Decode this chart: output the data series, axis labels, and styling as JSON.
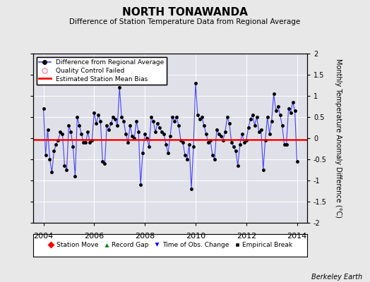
{
  "title": "NORTH TONAWANDA",
  "subtitle": "Difference of Station Temperature Data from Regional Average",
  "ylabel": "Monthly Temperature Anomaly Difference (°C)",
  "xlabel_years": [
    2004,
    2006,
    2008,
    2010,
    2012,
    2014
  ],
  "ylim": [
    -2,
    2
  ],
  "xlim": [
    2003.6,
    2014.4
  ],
  "bias_value": -0.03,
  "background_color": "#e8e8e8",
  "plot_bg_color": "#e0e0e8",
  "line_color": "#4444ff",
  "dot_color": "#000000",
  "bias_color": "#ff0000",
  "watermark": "Berkeley Earth",
  "data_x": [
    2004.0,
    2004.083,
    2004.167,
    2004.25,
    2004.333,
    2004.417,
    2004.5,
    2004.583,
    2004.667,
    2004.75,
    2004.833,
    2004.917,
    2005.0,
    2005.083,
    2005.167,
    2005.25,
    2005.333,
    2005.417,
    2005.5,
    2005.583,
    2005.667,
    2005.75,
    2005.833,
    2005.917,
    2006.0,
    2006.083,
    2006.167,
    2006.25,
    2006.333,
    2006.417,
    2006.5,
    2006.583,
    2006.667,
    2006.75,
    2006.833,
    2006.917,
    2007.0,
    2007.083,
    2007.167,
    2007.25,
    2007.333,
    2007.417,
    2007.5,
    2007.583,
    2007.667,
    2007.75,
    2007.833,
    2007.917,
    2008.0,
    2008.083,
    2008.167,
    2008.25,
    2008.333,
    2008.417,
    2008.5,
    2008.583,
    2008.667,
    2008.75,
    2008.833,
    2008.917,
    2009.0,
    2009.083,
    2009.167,
    2009.25,
    2009.333,
    2009.417,
    2009.5,
    2009.583,
    2009.667,
    2009.75,
    2009.833,
    2009.917,
    2010.0,
    2010.083,
    2010.167,
    2010.25,
    2010.333,
    2010.417,
    2010.5,
    2010.583,
    2010.667,
    2010.75,
    2010.833,
    2010.917,
    2011.0,
    2011.083,
    2011.167,
    2011.25,
    2011.333,
    2011.417,
    2011.5,
    2011.583,
    2011.667,
    2011.75,
    2011.833,
    2011.917,
    2012.0,
    2012.083,
    2012.167,
    2012.25,
    2012.333,
    2012.417,
    2012.5,
    2012.583,
    2012.667,
    2012.75,
    2012.833,
    2012.917,
    2013.0,
    2013.083,
    2013.167,
    2013.25,
    2013.333,
    2013.417,
    2013.5,
    2013.583,
    2013.667,
    2013.75,
    2013.833,
    2013.917,
    2014.0
  ],
  "data_y": [
    0.7,
    -0.4,
    0.2,
    -0.5,
    -0.8,
    -0.3,
    -0.15,
    -0.05,
    0.15,
    0.1,
    -0.65,
    -0.75,
    0.3,
    0.15,
    -0.2,
    -0.9,
    0.5,
    0.3,
    0.1,
    -0.1,
    -0.1,
    0.15,
    -0.1,
    -0.05,
    0.6,
    0.35,
    0.55,
    0.4,
    -0.55,
    -0.6,
    0.3,
    0.2,
    0.35,
    0.5,
    0.45,
    0.3,
    1.2,
    0.5,
    0.4,
    0.1,
    -0.1,
    0.3,
    0.05,
    0.0,
    0.4,
    0.15,
    -1.1,
    -0.35,
    0.1,
    0.0,
    -0.2,
    0.5,
    0.4,
    0.15,
    0.35,
    0.25,
    0.15,
    0.1,
    -0.15,
    -0.35,
    0.05,
    0.5,
    0.4,
    0.5,
    0.3,
    -0.05,
    -0.1,
    -0.4,
    -0.5,
    -0.15,
    -1.2,
    -0.2,
    1.3,
    0.55,
    0.45,
    0.5,
    0.3,
    0.1,
    -0.1,
    -0.05,
    -0.4,
    -0.5,
    0.2,
    0.1,
    0.05,
    -0.05,
    0.15,
    0.5,
    0.35,
    -0.1,
    -0.2,
    -0.3,
    -0.65,
    -0.15,
    0.1,
    -0.1,
    -0.05,
    0.25,
    0.45,
    0.55,
    0.3,
    0.5,
    0.15,
    0.2,
    -0.75,
    -0.05,
    0.5,
    0.1,
    0.4,
    1.05,
    0.65,
    0.75,
    0.55,
    0.3,
    -0.15,
    -0.15,
    0.7,
    0.6,
    0.85,
    0.65,
    -0.55
  ]
}
